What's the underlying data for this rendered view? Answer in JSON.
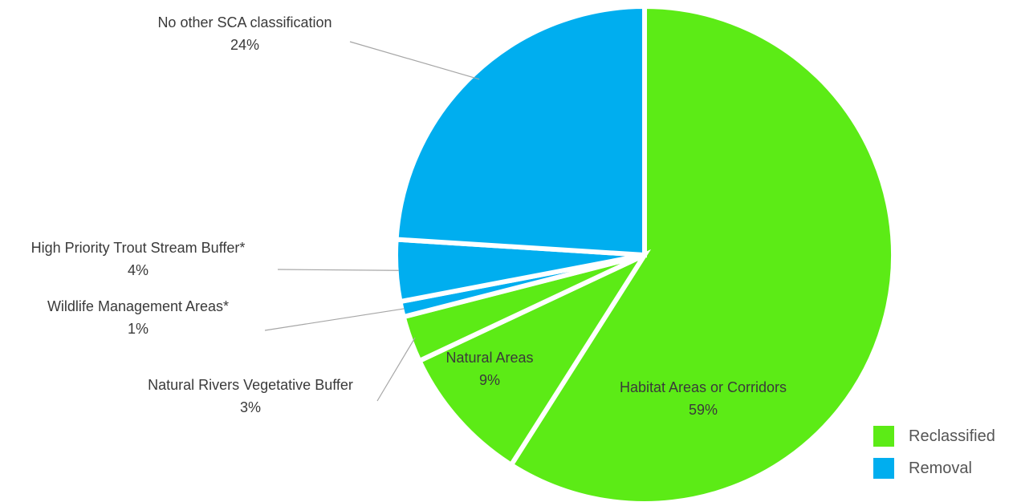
{
  "chart_data": {
    "type": "pie",
    "slices": [
      {
        "label": "Habitat Areas or Corridors",
        "value": 59,
        "value_label": "59%",
        "group": "Reclassified"
      },
      {
        "label": "Natural Areas",
        "value": 9,
        "value_label": "9%",
        "group": "Reclassified"
      },
      {
        "label": "Natural Rivers Vegetative Buffer",
        "value": 3,
        "value_label": "3%",
        "group": "Reclassified"
      },
      {
        "label": "Wildlife Management Areas*",
        "value": 1,
        "value_label": "1%",
        "group": "Removal"
      },
      {
        "label": "High Priority Trout Stream Buffer*",
        "value": 4,
        "value_label": "4%",
        "group": "Removal"
      },
      {
        "label": "No other SCA classification",
        "value": 24,
        "value_label": "24%",
        "group": "Removal"
      }
    ],
    "legend": [
      {
        "name": "Reclassified",
        "color": "#5ceb16"
      },
      {
        "name": "Removal",
        "color": "#00aeef"
      }
    ],
    "legend_position": "bottom-right",
    "start_angle_deg": 0,
    "direction": "clockwise"
  }
}
